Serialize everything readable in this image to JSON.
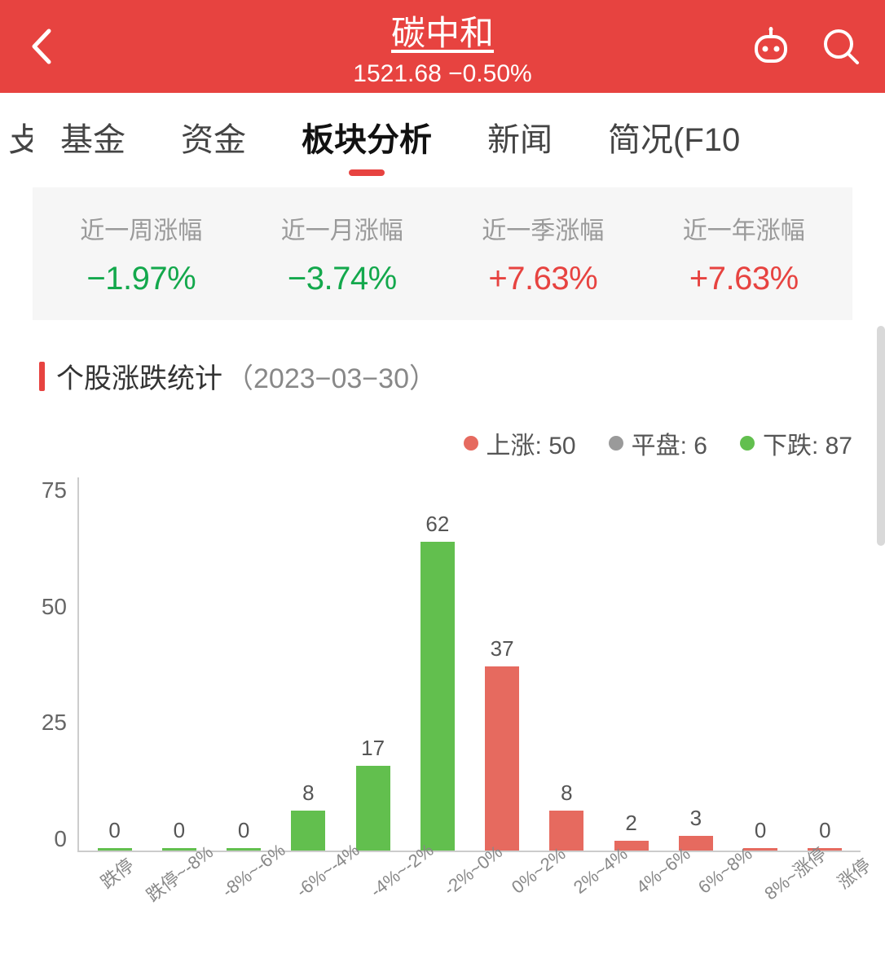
{
  "header": {
    "title": "碳中和",
    "price": "1521.68",
    "change": "−0.50%"
  },
  "tabs": {
    "edge_left": "攴",
    "items": [
      "基金",
      "资金",
      "板块分析",
      "新闻",
      "简况(F10"
    ],
    "active_index": 2
  },
  "stats": [
    {
      "label": "近一周涨幅",
      "value": "−1.97%",
      "dir": "down"
    },
    {
      "label": "近一月涨幅",
      "value": "−3.74%",
      "dir": "down"
    },
    {
      "label": "近一季涨幅",
      "value": "+7.63%",
      "dir": "up"
    },
    {
      "label": "近一年涨幅",
      "value": "+7.63%",
      "dir": "up"
    }
  ],
  "section": {
    "title": "个股涨跌统计",
    "date": "（2023−03−30）"
  },
  "legend": {
    "up": {
      "label": "上涨",
      "value": 50,
      "color": "#e66a5f"
    },
    "flat": {
      "label": "平盘",
      "value": 6,
      "color": "#9a9a9a"
    },
    "down": {
      "label": "下跌",
      "value": 87,
      "color": "#62bf4e"
    }
  },
  "chart": {
    "type": "bar",
    "ylim": [
      0,
      75
    ],
    "ytick_step": 25,
    "yticks": [
      "75",
      "50",
      "25",
      "0"
    ],
    "axis_color": "#cccccc",
    "label_fontsize": 22,
    "value_fontsize": 26,
    "colors": {
      "down": "#62bf4e",
      "up": "#e66a5f"
    },
    "bars": [
      {
        "label": "跌停",
        "value": 0,
        "side": "down"
      },
      {
        "label": "跌停~-8%",
        "value": 0,
        "side": "down"
      },
      {
        "label": "-8%~-6%",
        "value": 0,
        "side": "down"
      },
      {
        "label": "-6%~-4%",
        "value": 8,
        "side": "down"
      },
      {
        "label": "-4%~-2%",
        "value": 17,
        "side": "down"
      },
      {
        "label": "-2%~0%",
        "value": 62,
        "side": "down"
      },
      {
        "label": "0%~2%",
        "value": 37,
        "side": "up"
      },
      {
        "label": "2%~4%",
        "value": 8,
        "side": "up"
      },
      {
        "label": "4%~6%",
        "value": 2,
        "side": "up"
      },
      {
        "label": "6%~8%",
        "value": 3,
        "side": "up"
      },
      {
        "label": "8%~涨停",
        "value": 0,
        "side": "up"
      },
      {
        "label": "涨停",
        "value": 0,
        "side": "up"
      }
    ]
  }
}
